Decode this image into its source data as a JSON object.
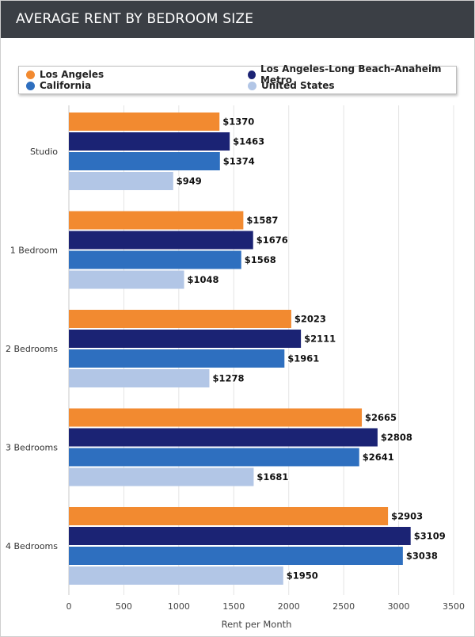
{
  "header": {
    "title": "AVERAGE RENT BY BEDROOM SIZE"
  },
  "colors": {
    "la": "#f28a30",
    "metro": "#1b2374",
    "california": "#2e6fbf",
    "us": "#b2c6e6"
  },
  "chart_data": {
    "type": "bar",
    "orientation": "horizontal",
    "title": "AVERAGE RENT BY BEDROOM SIZE",
    "xlabel": "Rent per Month",
    "ylabel": "",
    "xlim": [
      0,
      3500
    ],
    "x_ticks": [
      "0",
      "500",
      "1000",
      "1500",
      "2000",
      "2500",
      "3000",
      "3500"
    ],
    "grid": true,
    "legend_position": "top",
    "value_prefix": "$",
    "categories": [
      "Studio",
      "1 Bedroom",
      "2 Bedrooms",
      "3 Bedrooms",
      "4 Bedrooms"
    ],
    "series": [
      {
        "name": "Los Angeles",
        "color_key": "la",
        "values": [
          1370,
          1587,
          2023,
          2665,
          2903
        ]
      },
      {
        "name": "Los Angeles-Long Beach-Anaheim Metro",
        "color_key": "metro",
        "values": [
          1463,
          1676,
          2111,
          2808,
          3109
        ]
      },
      {
        "name": "California",
        "color_key": "california",
        "values": [
          1374,
          1568,
          1961,
          2641,
          3038
        ]
      },
      {
        "name": "United States",
        "color_key": "us",
        "values": [
          949,
          1048,
          1278,
          1681,
          1950
        ]
      }
    ]
  }
}
